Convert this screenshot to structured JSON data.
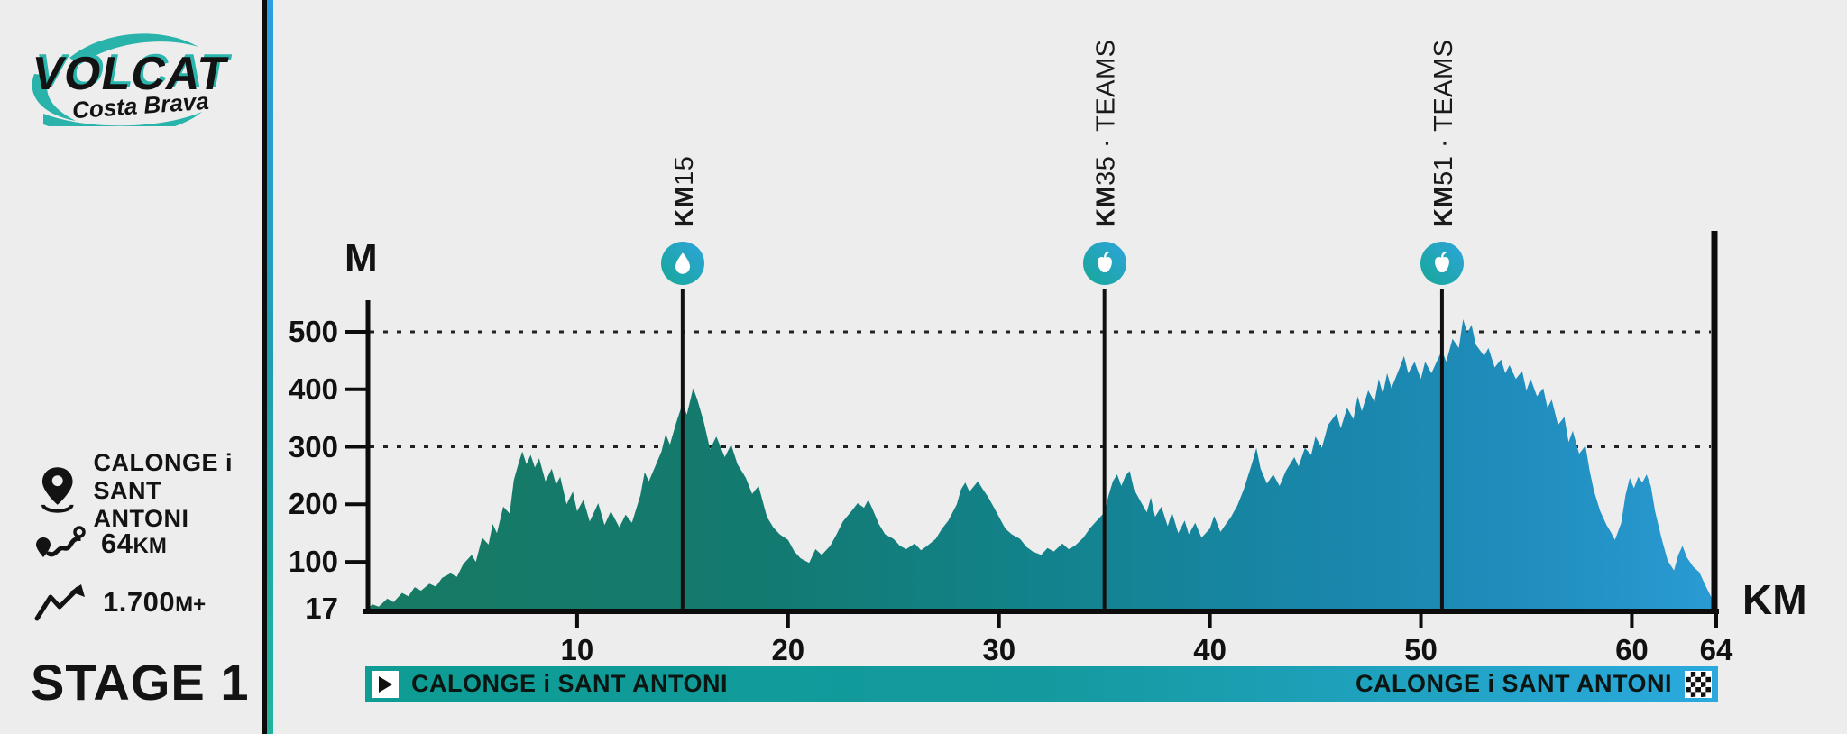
{
  "brand": {
    "name": "VOLCAT",
    "subtitle": "Costa Brava"
  },
  "sidebar": {
    "location": {
      "line1": "CALONGE i",
      "line2": "SANT ANTONI"
    },
    "distance": {
      "value": "64",
      "unit": "KM"
    },
    "elevation_gain": {
      "value": "1.700",
      "unit": "M+"
    },
    "stage_label": "STAGE 1"
  },
  "route_bar": {
    "start": "CALONGE i SANT ANTONI",
    "finish": "CALONGE i SANT ANTONI"
  },
  "colors": {
    "background": "#ededed",
    "ink": "#111111",
    "teal": "#129c94",
    "blue": "#2ba9de",
    "profile_gradient": [
      "#177a63",
      "#137a71",
      "#12838c",
      "#1986ab",
      "#218fc0",
      "#2a9bd4"
    ]
  },
  "chart_data": {
    "type": "area",
    "title": "VolCAT Costa Brava Stage 1 elevation profile",
    "xlabel": "KM",
    "ylabel": "M",
    "x_range": [
      0,
      64
    ],
    "y_base": 17,
    "base_label": "17",
    "y_ticks": [
      100,
      200,
      300,
      400,
      500
    ],
    "x_ticks": [
      10,
      20,
      30,
      40,
      50,
      60,
      64
    ],
    "dashed_gridlines_at": [
      300,
      500
    ],
    "grid": "dashed at 300 and 500 only",
    "legend_position": "none",
    "markers": [
      {
        "km": 15,
        "prefix": "KM",
        "rest": "15",
        "icon": "water-drop-icon"
      },
      {
        "km": 35,
        "prefix": "KM",
        "rest": "35 · TEAMS",
        "icon": "apple-icon"
      },
      {
        "km": 51,
        "prefix": "KM",
        "rest": "51 · TEAMS",
        "icon": "apple-icon"
      }
    ],
    "profile": [
      [
        0,
        17
      ],
      [
        0.3,
        26
      ],
      [
        0.6,
        22
      ],
      [
        1,
        36
      ],
      [
        1.3,
        30
      ],
      [
        1.7,
        46
      ],
      [
        2,
        40
      ],
      [
        2.3,
        56
      ],
      [
        2.6,
        50
      ],
      [
        3,
        62
      ],
      [
        3.3,
        57
      ],
      [
        3.6,
        72
      ],
      [
        4,
        80
      ],
      [
        4.3,
        74
      ],
      [
        4.6,
        96
      ],
      [
        5,
        112
      ],
      [
        5.2,
        100
      ],
      [
        5.5,
        142
      ],
      [
        5.8,
        130
      ],
      [
        6,
        166
      ],
      [
        6.2,
        150
      ],
      [
        6.5,
        196
      ],
      [
        6.8,
        184
      ],
      [
        7,
        242
      ],
      [
        7.2,
        268
      ],
      [
        7.4,
        292
      ],
      [
        7.6,
        270
      ],
      [
        7.8,
        286
      ],
      [
        8,
        264
      ],
      [
        8.2,
        280
      ],
      [
        8.5,
        240
      ],
      [
        8.8,
        262
      ],
      [
        9,
        234
      ],
      [
        9.2,
        248
      ],
      [
        9.5,
        200
      ],
      [
        9.8,
        222
      ],
      [
        10,
        188
      ],
      [
        10.3,
        208
      ],
      [
        10.6,
        170
      ],
      [
        11,
        202
      ],
      [
        11.3,
        164
      ],
      [
        11.6,
        188
      ],
      [
        12,
        160
      ],
      [
        12.3,
        182
      ],
      [
        12.6,
        168
      ],
      [
        13,
        216
      ],
      [
        13.2,
        256
      ],
      [
        13.4,
        240
      ],
      [
        13.7,
        266
      ],
      [
        14,
        292
      ],
      [
        14.2,
        322
      ],
      [
        14.4,
        304
      ],
      [
        14.7,
        342
      ],
      [
        15,
        376
      ],
      [
        15.2,
        356
      ],
      [
        15.5,
        402
      ],
      [
        15.7,
        382
      ],
      [
        16,
        344
      ],
      [
        16.3,
        296
      ],
      [
        16.6,
        318
      ],
      [
        17,
        282
      ],
      [
        17.3,
        304
      ],
      [
        17.6,
        270
      ],
      [
        18,
        246
      ],
      [
        18.3,
        218
      ],
      [
        18.6,
        232
      ],
      [
        19,
        178
      ],
      [
        19.3,
        160
      ],
      [
        19.6,
        148
      ],
      [
        20,
        138
      ],
      [
        20.3,
        118
      ],
      [
        20.6,
        106
      ],
      [
        21,
        98
      ],
      [
        21.3,
        122
      ],
      [
        21.6,
        112
      ],
      [
        22,
        128
      ],
      [
        22.3,
        148
      ],
      [
        22.6,
        170
      ],
      [
        23,
        188
      ],
      [
        23.3,
        202
      ],
      [
        23.6,
        194
      ],
      [
        23.8,
        208
      ],
      [
        24,
        192
      ],
      [
        24.3,
        166
      ],
      [
        24.6,
        148
      ],
      [
        25,
        140
      ],
      [
        25.3,
        128
      ],
      [
        25.6,
        122
      ],
      [
        26,
        132
      ],
      [
        26.3,
        120
      ],
      [
        26.6,
        128
      ],
      [
        27,
        140
      ],
      [
        27.3,
        158
      ],
      [
        27.6,
        172
      ],
      [
        28,
        200
      ],
      [
        28.2,
        226
      ],
      [
        28.4,
        238
      ],
      [
        28.6,
        222
      ],
      [
        29,
        240
      ],
      [
        29.2,
        228
      ],
      [
        29.5,
        212
      ],
      [
        29.8,
        192
      ],
      [
        30,
        178
      ],
      [
        30.3,
        158
      ],
      [
        30.6,
        148
      ],
      [
        31,
        140
      ],
      [
        31.3,
        126
      ],
      [
        31.6,
        118
      ],
      [
        32,
        112
      ],
      [
        32.3,
        124
      ],
      [
        32.6,
        118
      ],
      [
        33,
        132
      ],
      [
        33.3,
        122
      ],
      [
        33.6,
        128
      ],
      [
        34,
        142
      ],
      [
        34.3,
        158
      ],
      [
        34.6,
        170
      ],
      [
        35,
        186
      ],
      [
        35.2,
        216
      ],
      [
        35.4,
        240
      ],
      [
        35.6,
        252
      ],
      [
        35.8,
        232
      ],
      [
        36,
        250
      ],
      [
        36.2,
        258
      ],
      [
        36.4,
        226
      ],
      [
        36.7,
        206
      ],
      [
        37,
        186
      ],
      [
        37.2,
        212
      ],
      [
        37.4,
        178
      ],
      [
        37.7,
        196
      ],
      [
        38,
        162
      ],
      [
        38.2,
        186
      ],
      [
        38.5,
        150
      ],
      [
        38.8,
        172
      ],
      [
        39,
        148
      ],
      [
        39.3,
        168
      ],
      [
        39.6,
        142
      ],
      [
        40,
        158
      ],
      [
        40.2,
        180
      ],
      [
        40.5,
        152
      ],
      [
        40.8,
        168
      ],
      [
        41,
        178
      ],
      [
        41.3,
        198
      ],
      [
        41.6,
        226
      ],
      [
        42,
        272
      ],
      [
        42.2,
        298
      ],
      [
        42.4,
        262
      ],
      [
        42.7,
        236
      ],
      [
        43,
        252
      ],
      [
        43.3,
        232
      ],
      [
        43.6,
        258
      ],
      [
        44,
        282
      ],
      [
        44.2,
        266
      ],
      [
        44.5,
        298
      ],
      [
        44.8,
        286
      ],
      [
        45,
        318
      ],
      [
        45.3,
        298
      ],
      [
        45.6,
        338
      ],
      [
        46,
        358
      ],
      [
        46.2,
        332
      ],
      [
        46.5,
        368
      ],
      [
        46.8,
        348
      ],
      [
        47,
        388
      ],
      [
        47.2,
        362
      ],
      [
        47.5,
        398
      ],
      [
        47.8,
        378
      ],
      [
        48,
        418
      ],
      [
        48.2,
        392
      ],
      [
        48.4,
        428
      ],
      [
        48.6,
        402
      ],
      [
        49,
        438
      ],
      [
        49.2,
        458
      ],
      [
        49.4,
        428
      ],
      [
        49.7,
        448
      ],
      [
        50,
        418
      ],
      [
        50.2,
        448
      ],
      [
        50.5,
        428
      ],
      [
        50.8,
        452
      ],
      [
        51,
        468
      ],
      [
        51.2,
        448
      ],
      [
        51.5,
        488
      ],
      [
        51.8,
        472
      ],
      [
        52,
        522
      ],
      [
        52.2,
        498
      ],
      [
        52.4,
        512
      ],
      [
        52.6,
        478
      ],
      [
        53,
        458
      ],
      [
        53.2,
        472
      ],
      [
        53.5,
        438
      ],
      [
        53.8,
        452
      ],
      [
        54,
        428
      ],
      [
        54.2,
        442
      ],
      [
        54.5,
        418
      ],
      [
        54.8,
        432
      ],
      [
        55,
        398
      ],
      [
        55.2,
        418
      ],
      [
        55.5,
        388
      ],
      [
        55.8,
        402
      ],
      [
        56,
        368
      ],
      [
        56.2,
        382
      ],
      [
        56.5,
        338
      ],
      [
        56.8,
        352
      ],
      [
        57,
        308
      ],
      [
        57.2,
        328
      ],
      [
        57.5,
        288
      ],
      [
        57.8,
        302
      ],
      [
        58,
        258
      ],
      [
        58.2,
        224
      ],
      [
        58.5,
        188
      ],
      [
        58.8,
        164
      ],
      [
        59,
        152
      ],
      [
        59.2,
        138
      ],
      [
        59.5,
        168
      ],
      [
        59.7,
        216
      ],
      [
        59.9,
        246
      ],
      [
        60.1,
        228
      ],
      [
        60.3,
        248
      ],
      [
        60.5,
        238
      ],
      [
        60.7,
        252
      ],
      [
        60.9,
        232
      ],
      [
        61.1,
        188
      ],
      [
        61.4,
        142
      ],
      [
        61.7,
        102
      ],
      [
        62,
        85
      ],
      [
        62.2,
        112
      ],
      [
        62.4,
        128
      ],
      [
        62.6,
        108
      ],
      [
        62.9,
        92
      ],
      [
        63.2,
        82
      ],
      [
        63.5,
        58
      ],
      [
        63.8,
        36
      ],
      [
        64,
        20
      ]
    ]
  }
}
